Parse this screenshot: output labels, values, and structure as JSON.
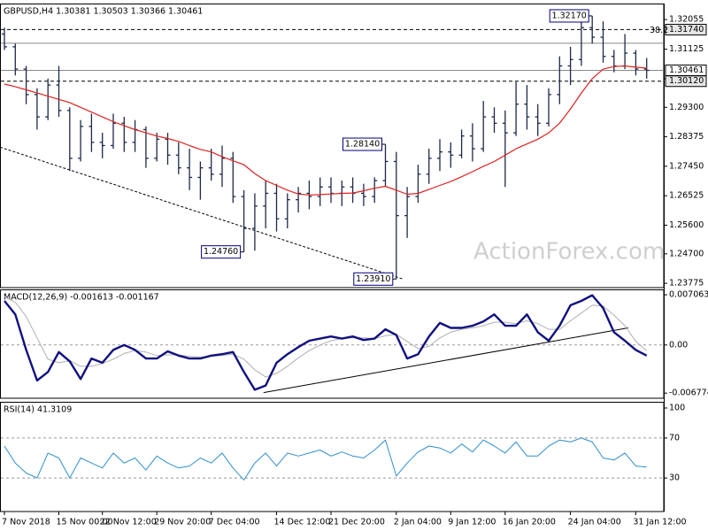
{
  "chart_data": [
    {
      "type": "candlestick",
      "title": "GBPUSD,H4  1.30381 1.30503 1.30366 1.30461",
      "watermark": "ActionForex.com",
      "categories": [
        "7 Nov 2018",
        null,
        null,
        null,
        null,
        "15 Nov 00:00",
        null,
        null,
        null,
        "22 Nov 12:00",
        null,
        null,
        null,
        null,
        "29 Nov 20:00",
        null,
        null,
        null,
        null,
        "7 Dec 04:00",
        null,
        null,
        null,
        null,
        null,
        "14 Dec 12:00",
        null,
        null,
        null,
        null,
        "21 Dec 20:00",
        null,
        null,
        null,
        null,
        null,
        "2 Jan 04:00",
        null,
        null,
        null,
        null,
        "9 Jan 12:00",
        null,
        null,
        null,
        null,
        "16 Jan 20:00",
        null,
        null,
        null,
        null,
        null,
        "24 Jan 04:00",
        null,
        null,
        null,
        null,
        null,
        "31 Jan 12:00",
        null
      ],
      "color": "#1c2a48",
      "candles": {
        "open": [
          1.316,
          1.312,
          1.305,
          1.297,
          1.29,
          1.3,
          1.292,
          1.277,
          1.287,
          1.282,
          1.281,
          1.288,
          1.282,
          1.286,
          1.277,
          1.283,
          1.278,
          1.274,
          1.271,
          1.274,
          1.272,
          1.277,
          1.265,
          1.255,
          1.262,
          1.266,
          1.258,
          1.264,
          1.266,
          1.265,
          1.268,
          1.266,
          1.268,
          1.266,
          1.265,
          1.27,
          1.276,
          1.259,
          1.265,
          1.272,
          1.277,
          1.279,
          1.278,
          1.284,
          1.28,
          1.29,
          1.288,
          1.285,
          1.294,
          1.29,
          1.288,
          1.297,
          1.306,
          1.308,
          1.318,
          1.315,
          1.309,
          1.306,
          1.31,
          1.305
        ],
        "high": [
          1.318,
          1.313,
          1.306,
          1.299,
          1.302,
          1.306,
          1.293,
          1.289,
          1.291,
          1.285,
          1.291,
          1.29,
          1.289,
          1.287,
          1.285,
          1.285,
          1.282,
          1.28,
          1.276,
          1.28,
          1.281,
          1.279,
          1.267,
          1.266,
          1.27,
          1.269,
          1.266,
          1.268,
          1.27,
          1.271,
          1.271,
          1.27,
          1.271,
          1.269,
          1.271,
          1.2814,
          1.279,
          1.268,
          1.275,
          1.28,
          1.283,
          1.282,
          1.286,
          1.288,
          1.295,
          1.293,
          1.292,
          1.301,
          1.3,
          1.294,
          1.299,
          1.309,
          1.312,
          1.321,
          1.3217,
          1.32,
          1.311,
          1.316,
          1.311,
          1.3085
        ],
        "low": [
          1.311,
          1.303,
          1.294,
          1.286,
          1.289,
          1.29,
          1.273,
          1.276,
          1.279,
          1.277,
          1.28,
          1.279,
          1.279,
          1.274,
          1.276,
          1.275,
          1.272,
          1.267,
          1.264,
          1.27,
          1.268,
          1.263,
          1.2476,
          1.248,
          1.255,
          1.254,
          1.255,
          1.26,
          1.261,
          1.262,
          1.263,
          1.262,
          1.263,
          1.262,
          1.263,
          1.268,
          1.2391,
          1.252,
          1.263,
          1.269,
          1.273,
          1.274,
          1.277,
          1.276,
          1.279,
          1.285,
          1.268,
          1.284,
          1.286,
          1.284,
          1.287,
          1.294,
          1.3,
          1.306,
          1.313,
          1.307,
          1.304,
          1.305,
          1.303,
          1.302
        ],
        "close": [
          1.312,
          1.305,
          1.297,
          1.29,
          1.3,
          1.292,
          1.277,
          1.287,
          1.282,
          1.281,
          1.288,
          1.282,
          1.286,
          1.277,
          1.283,
          1.278,
          1.274,
          1.271,
          1.274,
          1.272,
          1.277,
          1.265,
          1.255,
          1.262,
          1.266,
          1.258,
          1.264,
          1.266,
          1.265,
          1.268,
          1.266,
          1.268,
          1.266,
          1.265,
          1.27,
          1.276,
          1.259,
          1.265,
          1.272,
          1.277,
          1.279,
          1.278,
          1.284,
          1.28,
          1.29,
          1.288,
          1.285,
          1.294,
          1.29,
          1.288,
          1.297,
          1.306,
          1.308,
          1.318,
          1.315,
          1.309,
          1.306,
          1.31,
          1.305,
          1.3046
        ]
      },
      "series": [
        {
          "color": "#e02020",
          "width": 1.2,
          "values": [
            1.3003,
            1.2995,
            1.2985,
            1.2975,
            1.2965,
            1.2955,
            1.2945,
            1.293,
            1.2915,
            1.29,
            1.2885,
            1.2872,
            1.286,
            1.285,
            1.284,
            1.2832,
            1.2823,
            1.281,
            1.2798,
            1.279,
            1.2775,
            1.2762,
            1.275,
            1.2722,
            1.27,
            1.2685,
            1.267,
            1.2658,
            1.2655,
            1.2656,
            1.2658,
            1.266,
            1.2661,
            1.2668,
            1.2676,
            1.2682,
            1.267,
            1.2657,
            1.266,
            1.2672,
            1.2685,
            1.2697,
            1.2712,
            1.2728,
            1.2745,
            1.276,
            1.278,
            1.28,
            1.2815,
            1.283,
            1.285,
            1.288,
            1.2925,
            1.2975,
            1.302,
            1.305,
            1.3058,
            1.306,
            1.3056,
            1.3053
          ]
        }
      ],
      "ylim": [
        1.2364,
        1.3253
      ],
      "yticks": [
        {
          "value": 1.32055,
          "label": "1.32055"
        },
        {
          "value": 1.31125,
          "label": "1.31125"
        },
        {
          "value": 1.30195,
          "label": "1.30195"
        },
        {
          "value": 1.293,
          "label": "1.29300"
        },
        {
          "value": 1.28375,
          "label": "1.28375"
        },
        {
          "value": 1.2745,
          "label": "1.27450"
        },
        {
          "value": 1.26525,
          "label": "1.26525"
        },
        {
          "value": 1.256,
          "label": "1.25600"
        },
        {
          "value": 1.247,
          "label": "1.24700"
        },
        {
          "value": 1.23775,
          "label": "1.23775"
        }
      ],
      "levels": [
        {
          "value": 1.3174,
          "label": "1.31740",
          "fib": "38.2",
          "dash": true
        },
        {
          "value": 1.3131,
          "dash": false
        },
        {
          "value": 1.30461,
          "label": "1.30461",
          "dash": false
        },
        {
          "value": 1.3012,
          "label": "1.30120",
          "dash": true
        }
      ],
      "callouts": [
        {
          "index": 54,
          "value": 1.3217,
          "label": "1.32170"
        },
        {
          "index": 35,
          "value": 1.2814,
          "label": "1.28140"
        },
        {
          "index": 22,
          "value": 1.2476,
          "label": "1.24760"
        },
        {
          "index": 36,
          "value": 1.2391,
          "label": "1.23910"
        }
      ],
      "trendline": {
        "dash": true,
        "points": [
          [
            -0.4,
            1.2805
          ],
          [
            36.6,
            1.2391
          ]
        ]
      }
    },
    {
      "type": "line",
      "title": "MACD(12,26,9) -0.001613 -0.001167",
      "series": [
        {
          "color": "#b0b0b0",
          "width": 1,
          "values": [
            0.0068,
            0.006,
            0.004,
            0.001,
            -0.002,
            -0.0025,
            -0.0022,
            -0.003,
            -0.003,
            -0.0026,
            -0.002,
            -0.0012,
            -0.0008,
            -0.001,
            -0.0015,
            -0.0014,
            -0.0014,
            -0.0016,
            -0.0017,
            -0.0016,
            -0.0015,
            -0.0013,
            -0.002,
            -0.0035,
            -0.0045,
            -0.004,
            -0.003,
            -0.0018,
            -0.0008,
            0.0,
            0.0006,
            0.0009,
            0.001,
            0.001,
            0.0009,
            0.0013,
            0.0015,
            0.0005,
            -0.0005,
            -0.0002,
            0.001,
            0.0018,
            0.0022,
            0.0024,
            0.0027,
            0.0032,
            0.0032,
            0.003,
            0.0034,
            0.003,
            0.0022,
            0.0022,
            0.0034,
            0.0045,
            0.0056,
            0.0055,
            0.0042,
            0.0027,
            0.0005,
            -0.0008
          ]
        },
        {
          "color": "#101080",
          "width": 2.4,
          "values": [
            0.0062,
            0.0043,
            -0.0007,
            -0.005,
            -0.0038,
            -0.001,
            -0.0023,
            -0.0048,
            -0.0019,
            -0.0025,
            -0.0007,
            0.0,
            -0.0007,
            -0.0019,
            -0.0019,
            -0.0009,
            -0.0015,
            -0.0019,
            -0.0019,
            -0.0015,
            -0.0013,
            -0.001,
            -0.0038,
            -0.0063,
            -0.0057,
            -0.0025,
            -0.0013,
            -0.0003,
            0.0006,
            0.0009,
            0.0012,
            0.0009,
            0.0012,
            0.0007,
            0.0009,
            0.0022,
            0.0014,
            -0.0019,
            -0.0013,
            0.0012,
            0.0031,
            0.0024,
            0.0024,
            0.0027,
            0.0033,
            0.0043,
            0.0027,
            0.0027,
            0.0043,
            0.0018,
            0.0006,
            0.0027,
            0.0056,
            0.0062,
            0.007,
            0.0052,
            0.0018,
            0.0006,
            -0.0007,
            -0.0015
          ]
        }
      ],
      "ylim": [
        -0.0075,
        0.0077
      ],
      "yticks": [
        0.007063,
        {
          "value": 0,
          "label": "0.00"
        },
        -0.006774
      ],
      "gridlines": [
        0
      ],
      "trendline": {
        "dash": false,
        "points": [
          [
            23.8,
            -0.0067
          ],
          [
            57.3,
            0.0024
          ]
        ]
      }
    },
    {
      "type": "line",
      "title": "RSI(14) 41.3109",
      "series": [
        {
          "color": "#2f8fd0",
          "width": 1,
          "values": [
            62,
            45,
            35,
            30,
            55,
            50,
            30,
            50,
            45,
            40,
            55,
            45,
            50,
            38,
            52,
            45,
            40,
            42,
            50,
            45,
            55,
            40,
            28,
            45,
            55,
            42,
            55,
            52,
            55,
            58,
            52,
            56,
            52,
            50,
            58,
            68,
            32,
            45,
            56,
            62,
            60,
            55,
            64,
            56,
            68,
            62,
            55,
            66,
            52,
            52,
            62,
            68,
            66,
            70,
            66,
            50,
            48,
            55,
            42,
            41
          ]
        }
      ],
      "ylim": [
        -3.5,
        105.3
      ],
      "yticks": [
        100,
        70,
        30
      ],
      "gridlines": [
        70,
        30
      ]
    }
  ]
}
